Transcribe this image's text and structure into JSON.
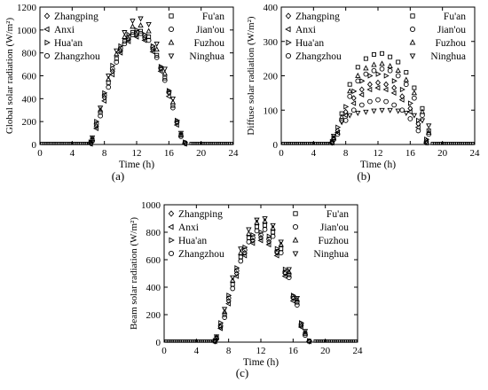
{
  "chart_data": [
    {
      "type": "scatter",
      "panel_label": "(a)",
      "xlabel": "Time (h)",
      "ylabel": "Global solar radiation (W/m²)",
      "xlim": [
        0,
        24
      ],
      "ylim": [
        0,
        1200
      ],
      "xticks": [
        0,
        4,
        8,
        12,
        16,
        20,
        24
      ],
      "yticks": [
        0,
        200,
        400,
        600,
        800,
        1000,
        1200
      ],
      "legend_left": [
        "Zhangping",
        "Anxi",
        "Hua'an",
        "Zhangzhou"
      ],
      "legend_right": [
        "Fu'an",
        "Jian'ou",
        "Fuzhou",
        "Ninghua"
      ],
      "series": [
        {
          "name": "Zhangping",
          "marker": "diamond",
          "x": [
            6.3,
            7.0,
            8.0,
            9.0,
            10.0,
            11.0,
            12.0,
            13.0,
            14.0,
            15.0,
            16.0,
            17.0,
            18.0
          ],
          "y": [
            10,
            160,
            410,
            640,
            820,
            920,
            960,
            930,
            830,
            660,
            450,
            190,
            10
          ]
        },
        {
          "name": "Anxi",
          "marker": "tri-left",
          "x": [
            6.3,
            7.0,
            8.0,
            9.0,
            10.0,
            11.0,
            12.0,
            13.0,
            14.0,
            15.0,
            16.0,
            17.0,
            18.0
          ],
          "y": [
            5,
            140,
            380,
            610,
            800,
            900,
            940,
            910,
            810,
            640,
            420,
            170,
            5
          ]
        },
        {
          "name": "Hua'an",
          "marker": "tri-right",
          "x": [
            6.3,
            7.0,
            8.0,
            9.0,
            10.0,
            11.0,
            12.0,
            13.0,
            14.0,
            15.0,
            16.0,
            17.0,
            18.0
          ],
          "y": [
            20,
            200,
            450,
            690,
            860,
            960,
            1000,
            960,
            860,
            680,
            470,
            210,
            20
          ]
        },
        {
          "name": "Zhangzhou",
          "marker": "circle",
          "x": [
            6.3,
            7.0,
            8.0,
            9.0,
            10.0,
            11.0,
            12.0,
            13.0,
            14.0,
            15.0,
            16.0,
            17.0,
            18.0
          ],
          "y": [
            15,
            180,
            430,
            660,
            840,
            940,
            980,
            950,
            850,
            670,
            460,
            200,
            15
          ]
        },
        {
          "name": "Fu'an",
          "marker": "square",
          "x": [
            6.5,
            7.5,
            8.5,
            9.5,
            10.5,
            11.5,
            12.5,
            13.5,
            14.5,
            15.5,
            16.5,
            17.5
          ],
          "y": [
            40,
            280,
            540,
            750,
            900,
            980,
            990,
            940,
            780,
            580,
            340,
            80
          ]
        },
        {
          "name": "Jian'ou",
          "marker": "circle",
          "x": [
            6.5,
            7.5,
            8.5,
            9.5,
            10.5,
            11.5,
            12.5,
            13.5,
            14.5,
            15.5,
            16.5,
            17.5
          ],
          "y": [
            30,
            250,
            500,
            720,
            880,
            960,
            970,
            910,
            760,
            560,
            320,
            70
          ]
        },
        {
          "name": "Fuzhou",
          "marker": "tri-up",
          "x": [
            6.5,
            7.5,
            8.5,
            9.5,
            10.5,
            11.5,
            12.5,
            13.5,
            14.5,
            15.5,
            16.5,
            17.5
          ],
          "y": [
            50,
            300,
            570,
            790,
            940,
            1030,
            1040,
            990,
            830,
            620,
            370,
            90
          ]
        },
        {
          "name": "Ninghua",
          "marker": "tri-down",
          "x": [
            6.5,
            7.5,
            8.5,
            9.5,
            10.5,
            11.5,
            12.5,
            13.5,
            14.5,
            15.5,
            16.5,
            17.5
          ],
          "y": [
            60,
            320,
            600,
            820,
            980,
            1080,
            1100,
            1050,
            880,
            660,
            400,
            100
          ]
        }
      ]
    },
    {
      "type": "scatter",
      "panel_label": "(b)",
      "xlabel": "Time (h)",
      "ylabel": "Diffuse solar radiation (W/m²)",
      "xlim": [
        0,
        24
      ],
      "ylim": [
        0,
        400
      ],
      "xticks": [
        0,
        4,
        8,
        12,
        16,
        20,
        24
      ],
      "yticks": [
        0,
        100,
        200,
        300,
        400
      ],
      "legend_left": [
        "Zhangping",
        "Anxi",
        "Hua'an",
        "Zhangzhou"
      ],
      "legend_right": [
        "Fu'an",
        "Jian'ou",
        "Fuzhou",
        "Ninghua"
      ],
      "series": [
        {
          "name": "Zhangping",
          "marker": "diamond",
          "x": [
            6.3,
            7.0,
            8.0,
            9.0,
            10.0,
            11.0,
            12.0,
            13.0,
            14.0,
            15.0,
            16.0,
            17.0,
            18.0
          ],
          "y": [
            5,
            40,
            95,
            135,
            160,
            175,
            180,
            175,
            165,
            140,
            105,
            60,
            10
          ]
        },
        {
          "name": "Anxi",
          "marker": "tri-left",
          "x": [
            6.3,
            7.0,
            8.0,
            9.0,
            10.0,
            11.0,
            12.0,
            13.0,
            14.0,
            15.0,
            16.0,
            17.0,
            18.0
          ],
          "y": [
            5,
            35,
            85,
            120,
            145,
            160,
            165,
            160,
            150,
            130,
            95,
            50,
            5
          ]
        },
        {
          "name": "Hua'an",
          "marker": "tri-right",
          "x": [
            6.3,
            7.0,
            8.0,
            9.0,
            10.0,
            11.0,
            12.0,
            13.0,
            14.0,
            15.0,
            16.0,
            17.0,
            18.0
          ],
          "y": [
            8,
            50,
            110,
            155,
            185,
            200,
            205,
            200,
            185,
            160,
            120,
            70,
            15
          ]
        },
        {
          "name": "Zhangzhou",
          "marker": "circle",
          "x": [
            6.3,
            7.0,
            8.0,
            9.0,
            10.0,
            11.0,
            12.0,
            13.0,
            14.0,
            15.0,
            16.0,
            17.0,
            18.0
          ],
          "y": [
            5,
            30,
            70,
            100,
            115,
            125,
            130,
            125,
            115,
            100,
            75,
            40,
            5
          ]
        },
        {
          "name": "Fu'an",
          "marker": "square",
          "x": [
            6.5,
            7.5,
            8.5,
            9.5,
            10.5,
            11.5,
            12.5,
            13.5,
            14.5,
            15.5,
            16.5,
            17.5,
            18.3
          ],
          "y": [
            20,
            90,
            175,
            225,
            250,
            262,
            265,
            255,
            240,
            210,
            165,
            105,
            40
          ]
        },
        {
          "name": "Jian'ou",
          "marker": "circle",
          "x": [
            6.5,
            7.5,
            8.5,
            9.5,
            10.5,
            11.5,
            12.5,
            13.5,
            14.5,
            15.5,
            16.5,
            17.5,
            18.3
          ],
          "y": [
            15,
            70,
            140,
            185,
            205,
            215,
            220,
            215,
            200,
            175,
            135,
            85,
            30
          ]
        },
        {
          "name": "Fuzhou",
          "marker": "tri-up",
          "x": [
            6.5,
            7.5,
            8.5,
            9.5,
            10.5,
            11.5,
            12.5,
            13.5,
            14.5,
            15.5,
            16.5,
            17.5,
            18.3
          ],
          "y": [
            18,
            80,
            155,
            200,
            222,
            232,
            235,
            228,
            215,
            188,
            150,
            95,
            35
          ]
        },
        {
          "name": "Ninghua",
          "marker": "tri-down",
          "x": [
            6.5,
            7.5,
            8.5,
            9.5,
            10.5,
            11.5,
            12.5,
            13.5,
            14.5,
            15.5,
            16.5,
            17.5,
            18.3
          ],
          "y": [
            25,
            65,
            85,
            92,
            95,
            98,
            100,
            100,
            98,
            92,
            85,
            70,
            55
          ]
        }
      ]
    },
    {
      "type": "scatter",
      "panel_label": "(c)",
      "xlabel": "Time (h)",
      "ylabel": "Beam solar radiation (W/m²)",
      "xlim": [
        0,
        24
      ],
      "ylim": [
        0,
        1000
      ],
      "xticks": [
        0,
        4,
        8,
        12,
        16,
        20,
        24
      ],
      "yticks": [
        0,
        200,
        400,
        600,
        800,
        1000
      ],
      "legend_left": [
        "Zhangping",
        "Anxi",
        "Hua'an",
        "Zhangzhou"
      ],
      "legend_right": [
        "Fu'an",
        "Jian'ou",
        "Fuzhou",
        "Ninghua"
      ],
      "series": [
        {
          "name": "Zhangping",
          "marker": "diamond",
          "x": [
            6.3,
            7.0,
            8.0,
            9.0,
            10.0,
            11.0,
            12.0,
            13.0,
            14.0,
            15.0,
            16.0,
            17.0,
            18.0
          ],
          "y": [
            5,
            110,
            300,
            500,
            650,
            740,
            760,
            730,
            650,
            500,
            320,
            120,
            5
          ]
        },
        {
          "name": "Anxi",
          "marker": "tri-left",
          "x": [
            6.3,
            7.0,
            8.0,
            9.0,
            10.0,
            11.0,
            12.0,
            13.0,
            14.0,
            15.0,
            16.0,
            17.0,
            18.0
          ],
          "y": [
            5,
            100,
            280,
            480,
            630,
            720,
            740,
            710,
            630,
            480,
            300,
            110,
            5
          ]
        },
        {
          "name": "Hua'an",
          "marker": "tri-right",
          "x": [
            6.3,
            7.0,
            8.0,
            9.0,
            10.0,
            11.0,
            12.0,
            13.0,
            14.0,
            15.0,
            16.0,
            17.0,
            18.0
          ],
          "y": [
            10,
            140,
            340,
            540,
            690,
            780,
            800,
            770,
            680,
            530,
            340,
            140,
            10
          ]
        },
        {
          "name": "Zhangzhou",
          "marker": "circle",
          "x": [
            6.3,
            7.0,
            8.0,
            9.0,
            10.0,
            11.0,
            12.0,
            13.0,
            14.0,
            15.0,
            16.0,
            17.0,
            18.0
          ],
          "y": [
            8,
            120,
            320,
            520,
            670,
            760,
            780,
            750,
            660,
            510,
            330,
            130,
            8
          ]
        },
        {
          "name": "Fu'an",
          "marker": "square",
          "x": [
            6.5,
            7.5,
            8.5,
            9.5,
            10.5,
            11.5,
            12.5,
            13.5,
            14.5,
            15.5,
            16.5,
            17.5
          ],
          "y": [
            30,
            200,
            420,
            620,
            760,
            840,
            850,
            800,
            680,
            490,
            290,
            60
          ]
        },
        {
          "name": "Jian'ou",
          "marker": "circle",
          "x": [
            6.5,
            7.5,
            8.5,
            9.5,
            10.5,
            11.5,
            12.5,
            13.5,
            14.5,
            15.5,
            16.5,
            17.5
          ],
          "y": [
            25,
            180,
            390,
            590,
            730,
            810,
            820,
            770,
            650,
            470,
            270,
            50
          ]
        },
        {
          "name": "Fuzhou",
          "marker": "tri-up",
          "x": [
            6.5,
            7.5,
            8.5,
            9.5,
            10.5,
            11.5,
            12.5,
            13.5,
            14.5,
            15.5,
            16.5,
            17.5
          ],
          "y": [
            35,
            220,
            450,
            650,
            790,
            870,
            880,
            830,
            710,
            510,
            310,
            70
          ]
        },
        {
          "name": "Ninghua",
          "marker": "tri-down",
          "x": [
            6.5,
            7.5,
            8.5,
            9.5,
            10.5,
            11.5,
            12.5,
            13.5,
            14.5,
            15.5,
            16.5,
            17.5
          ],
          "y": [
            40,
            240,
            470,
            680,
            820,
            890,
            900,
            850,
            730,
            530,
            320,
            80
          ]
        }
      ]
    }
  ]
}
